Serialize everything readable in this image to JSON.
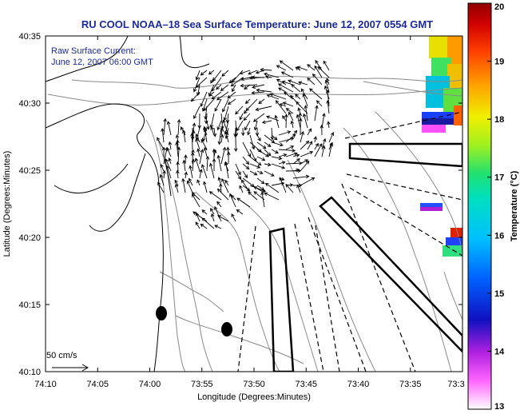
{
  "chart_data": {
    "type": "map",
    "title": "RU COOL  NOAA–18  Sea Surface Temperature:  June 12, 2007 0554 GMT",
    "annotation_lines": [
      "Raw Surface Current:",
      "June 12, 2007 06:00 GMT"
    ],
    "scale_label": "50 cm/s",
    "xlabel": "Longitude (Degrees:Minutes)",
    "ylabel": "Latitude (Degrees:Minutes)",
    "xlim_minutes": [
      -74.1667,
      -73.5
    ],
    "ylim_minutes": [
      40.1667,
      40.5833
    ],
    "x_ticks": [
      "74:10",
      "74:05",
      "74:00",
      "73:55",
      "73:50",
      "73:45",
      "73:40",
      "73:35",
      "73:3"
    ],
    "y_ticks": [
      "40:35",
      "40:30",
      "40:25",
      "40:20",
      "40:15",
      "40:10"
    ],
    "colorbar": {
      "label": "Temperature (°C)",
      "min": 13,
      "max": 20,
      "ticks": [
        "20",
        "19",
        "18",
        "17",
        "16",
        "15",
        "14",
        "13"
      ]
    },
    "colors": {
      "title": "#1a2a9c",
      "land_contour": "#000000",
      "bathymetry": "#888888",
      "vectors": "#000000"
    }
  }
}
